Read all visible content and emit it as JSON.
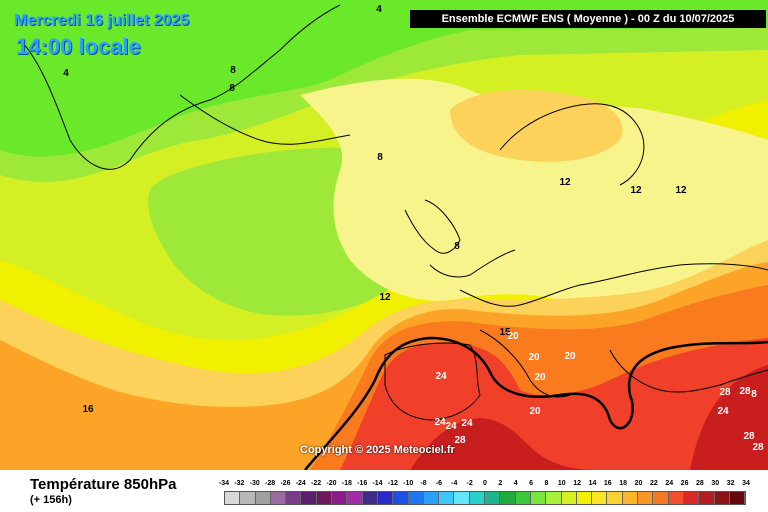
{
  "header": {
    "date_line": "Mercredi 16 juillet 2025",
    "time_line": "14:00 locale",
    "run_info": "Ensemble ECMWF ENS  ( Moyenne )  -  00 Z du 10/07/2025"
  },
  "copyright": "Copyright © 2025 Meteociel.fr",
  "footer": {
    "parameter": "Température 850hPa",
    "lead_time": "(+ 156h)"
  },
  "colors": {
    "green_4": "#6ae82a",
    "green_8": "#9ee83a",
    "yellow_green": "#d4f024",
    "yellow": "#f0f000",
    "pale_yellow": "#f8f48c",
    "light_orange": "#fcd25a",
    "orange": "#fca428",
    "orange_red": "#fa7a1e",
    "red": "#f0402a",
    "dark_red": "#c81e1e",
    "isotherm_20": "#000000"
  },
  "contour_labels": [
    {
      "value": "4"
    },
    {
      "value": "4"
    },
    {
      "value": "8"
    },
    {
      "value": "8"
    },
    {
      "value": "8"
    },
    {
      "value": "8"
    },
    {
      "value": "12"
    },
    {
      "value": "12"
    },
    {
      "value": "12"
    },
    {
      "value": "12"
    },
    {
      "value": "16"
    },
    {
      "value": "15"
    },
    {
      "value": "20"
    },
    {
      "value": "20"
    },
    {
      "value": "20"
    },
    {
      "value": "20"
    },
    {
      "value": "20"
    },
    {
      "value": "24"
    },
    {
      "value": "24"
    },
    {
      "value": "24"
    },
    {
      "value": "24"
    },
    {
      "value": "24"
    },
    {
      "value": "28"
    },
    {
      "value": "28"
    },
    {
      "value": "28"
    },
    {
      "value": "28"
    },
    {
      "value": "28"
    },
    {
      "value": "8"
    }
  ],
  "scale": {
    "labels": [
      "-34",
      "-32",
      "-30",
      "-28",
      "-26",
      "-24",
      "-22",
      "-20",
      "-18",
      "-16",
      "-14",
      "-12",
      "-10",
      "-8",
      "-6",
      "-4",
      "-2",
      "0",
      "2",
      "4",
      "6",
      "8",
      "10",
      "12",
      "14",
      "16",
      "18",
      "20",
      "22",
      "24",
      "26",
      "28",
      "30",
      "32",
      "34"
    ],
    "colors": [
      "#d8d8d8",
      "#b8b8b8",
      "#a0a0a0",
      "#9a6aa0",
      "#7a3c86",
      "#5e1e6e",
      "#6e1a5a",
      "#8a1c8a",
      "#a02ca8",
      "#3c2c8c",
      "#2a2ac8",
      "#1e50e6",
      "#1e78f0",
      "#28a0f8",
      "#3cc8fc",
      "#64e6f8",
      "#28d2c8",
      "#1eb48c",
      "#1eaa3c",
      "#3cc83c",
      "#7ae63c",
      "#a8f03c",
      "#d4f024",
      "#f0f000",
      "#fae628",
      "#fcd232",
      "#fcb428",
      "#fa9628",
      "#f57823",
      "#f0502a",
      "#dc2828",
      "#b41e1e",
      "#8c1414",
      "#640a0a"
    ]
  }
}
